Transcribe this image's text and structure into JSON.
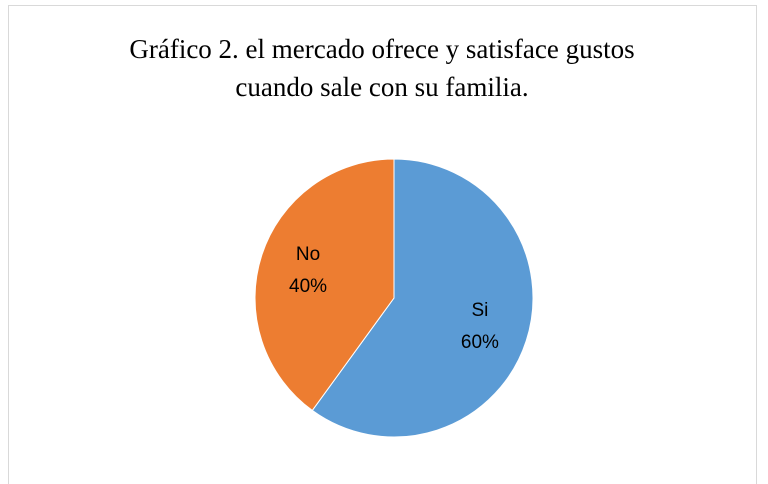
{
  "chart_data": {
    "type": "pie",
    "title": [
      "Gráfico 2. el mercado ofrece y satisface gustos",
      "cuando sale con su familia."
    ],
    "categories": [
      "Si",
      "No"
    ],
    "values": [
      60,
      40
    ],
    "value_labels": [
      "60%",
      "40%"
    ],
    "colors": [
      "#5b9bd5",
      "#ed7d31"
    ]
  }
}
